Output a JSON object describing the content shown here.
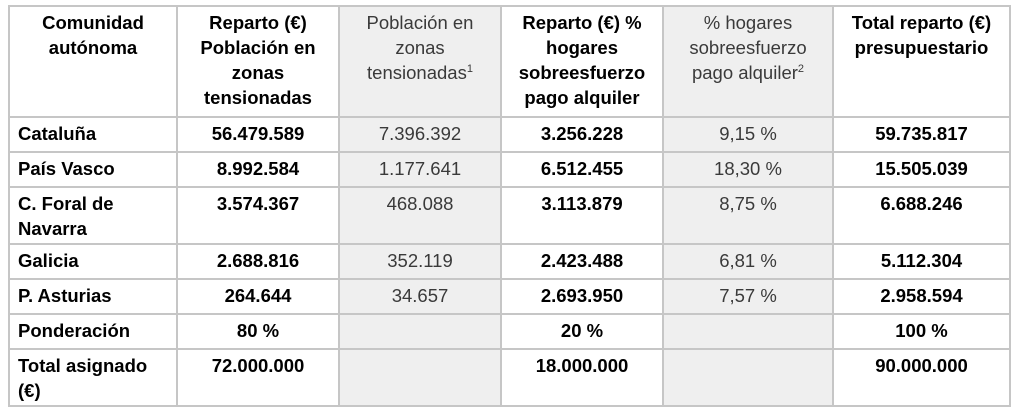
{
  "header": {
    "c1": "Comunidad autónoma",
    "c2": "Reparto (€) Población en zonas tensionadas",
    "c3": "Población en zonas tensionadas",
    "c3_sup": "1",
    "c4": "Reparto (€) % hogares sobreesfuerzo pago alquiler",
    "c5": "% hogares sobreesfuerzo pago alquiler",
    "c5_sup": "2",
    "c6": "Total reparto (€) presupuestario"
  },
  "rows": [
    {
      "c1": "Cataluña",
      "c2": "56.479.589",
      "c3": "7.396.392",
      "c4": "3.256.228",
      "c5": "9,15 %",
      "c6": "59.735.817"
    },
    {
      "c1": "País Vasco",
      "c2": "8.992.584",
      "c3": "1.177.641",
      "c4": "6.512.455",
      "c5": "18,30 %",
      "c6": "15.505.039"
    },
    {
      "c1": "C. Foral de Navarra",
      "c2": "3.574.367",
      "c3": "468.088",
      "c4": "3.113.879",
      "c5": "8,75 %",
      "c6": "6.688.246"
    },
    {
      "c1": "Galicia",
      "c2": "2.688.816",
      "c3": "352.119",
      "c4": "2.423.488",
      "c5": "6,81 %",
      "c6": "5.112.304"
    },
    {
      "c1": "P. Asturias",
      "c2": "264.644",
      "c3": "34.657",
      "c4": "2.693.950",
      "c5": "7,57 %",
      "c6": "2.958.594"
    }
  ],
  "ponderacion": {
    "c1": "Ponderación",
    "c2": "80 %",
    "c4": "20 %",
    "c6": "100 %"
  },
  "total": {
    "c1": "Total asignado (€)",
    "c2": "72.000.000",
    "c4": "18.000.000",
    "c6": "90.000.000"
  }
}
